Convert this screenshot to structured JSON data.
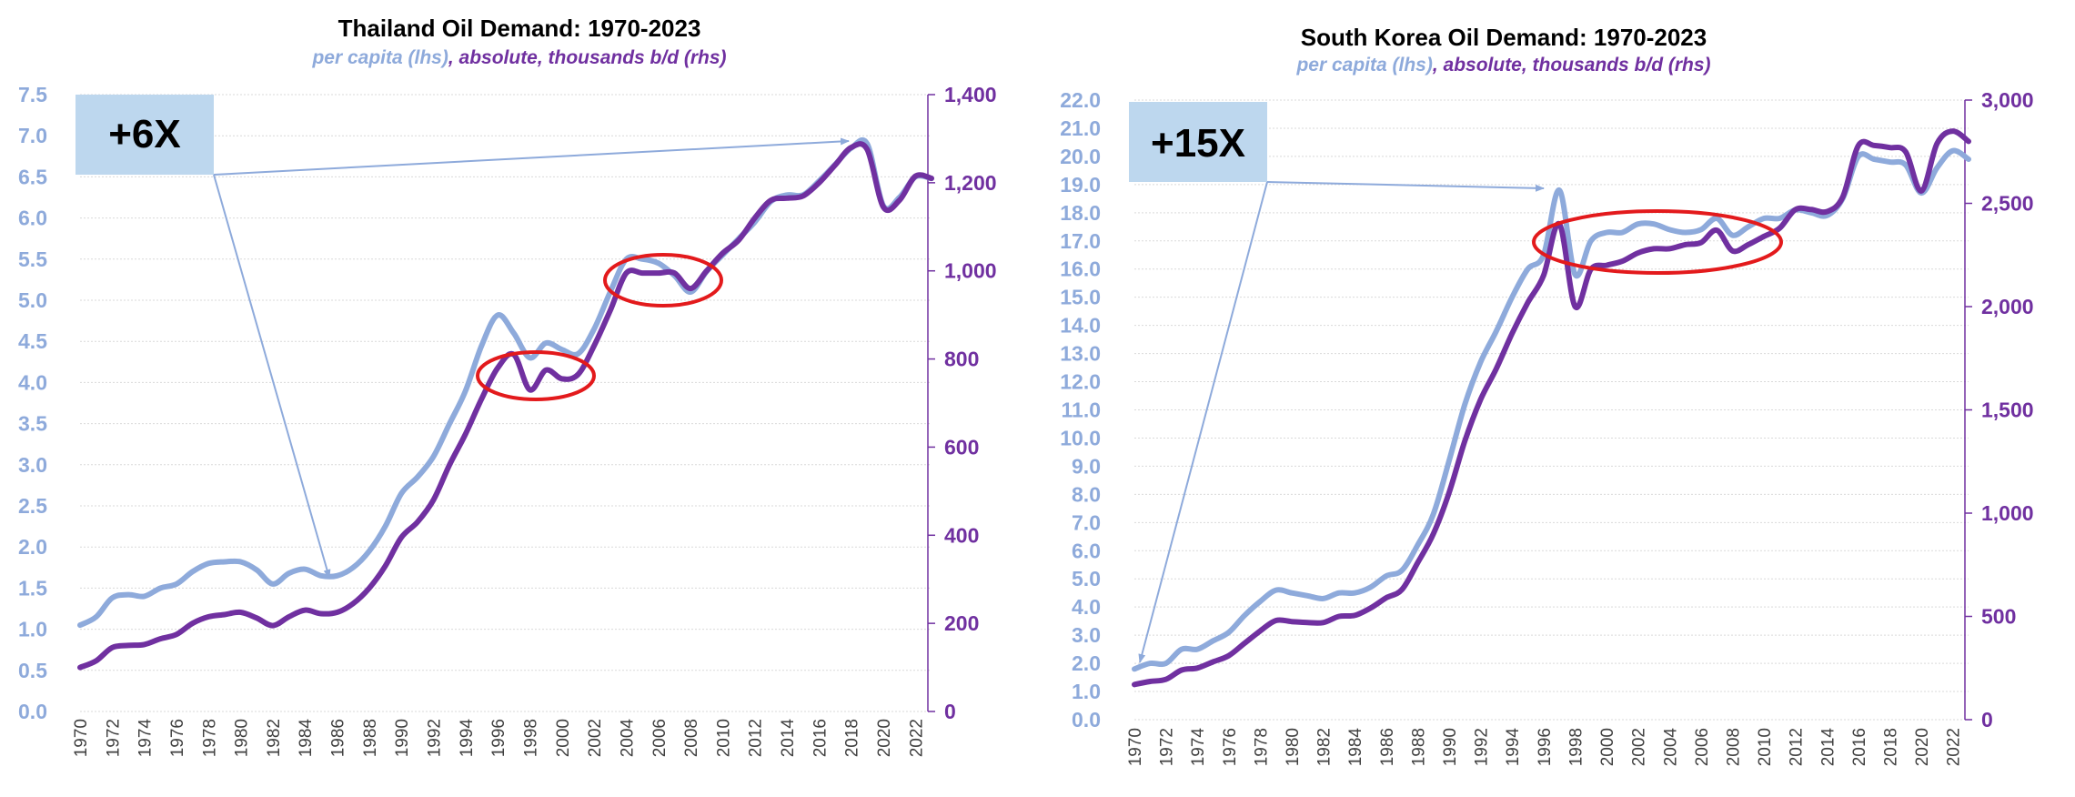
{
  "colors": {
    "per_capita": "#8eaadb",
    "absolute": "#7030a0",
    "left_axis_text": "#8eaadb",
    "right_axis_text": "#7030a0",
    "badge_fill": "#bdd7ee",
    "circle": "#e31a1c",
    "arrow": "#8eaadb"
  },
  "chart_data": [
    {
      "type": "line",
      "title": "Thailand Oil Demand: 1970-2023",
      "subtitle_part1": "per capita (lhs)",
      "subtitle_sep": ", ",
      "subtitle_part2": "absolute, thousands b/d (rhs)",
      "badge": "+6X",
      "xlim": [
        1970,
        2023
      ],
      "ylim_left": [
        0,
        7.5
      ],
      "ylim_right": [
        0,
        1400
      ],
      "left_ticks": [
        "0.0",
        "0.5",
        "1.0",
        "1.5",
        "2.0",
        "2.5",
        "3.0",
        "3.5",
        "4.0",
        "4.5",
        "5.0",
        "5.5",
        "6.0",
        "6.5",
        "7.0",
        "7.5"
      ],
      "right_ticks": [
        "0",
        "200",
        "400",
        "600",
        "800",
        "1,000",
        "1,200",
        "1,400"
      ],
      "x_ticks": [
        "1970",
        "1972",
        "1974",
        "1976",
        "1978",
        "1980",
        "1982",
        "1984",
        "1986",
        "1988",
        "1990",
        "1992",
        "1994",
        "1996",
        "1998",
        "2000",
        "2002",
        "2004",
        "2006",
        "2008",
        "2010",
        "2012",
        "2014",
        "2016",
        "2018",
        "2020",
        "2022"
      ],
      "x": [
        1970,
        1971,
        1972,
        1973,
        1974,
        1975,
        1976,
        1977,
        1978,
        1979,
        1980,
        1981,
        1982,
        1983,
        1984,
        1985,
        1986,
        1987,
        1988,
        1989,
        1990,
        1991,
        1992,
        1993,
        1994,
        1995,
        1996,
        1997,
        1998,
        1999,
        2000,
        2001,
        2002,
        2003,
        2004,
        2005,
        2006,
        2007,
        2008,
        2009,
        2010,
        2011,
        2012,
        2013,
        2014,
        2015,
        2016,
        2017,
        2018,
        2019,
        2020,
        2021,
        2022,
        2023
      ],
      "series": [
        {
          "name": "per capita (lhs)",
          "axis": "left",
          "values": [
            1.05,
            1.15,
            1.38,
            1.42,
            1.4,
            1.5,
            1.55,
            1.7,
            1.8,
            1.82,
            1.82,
            1.72,
            1.55,
            1.68,
            1.73,
            1.65,
            1.65,
            1.75,
            1.95,
            2.25,
            2.65,
            2.85,
            3.1,
            3.5,
            3.9,
            4.45,
            4.82,
            4.6,
            4.3,
            4.48,
            4.4,
            4.35,
            4.65,
            5.1,
            5.5,
            5.5,
            5.45,
            5.3,
            5.1,
            5.35,
            5.55,
            5.75,
            5.95,
            6.2,
            6.28,
            6.28,
            6.45,
            6.65,
            6.85,
            6.9,
            6.15,
            6.25,
            6.5,
            6.48
          ]
        },
        {
          "name": "absolute, thousands b/d (rhs)",
          "axis": "right",
          "values": [
            100,
            115,
            145,
            150,
            152,
            165,
            175,
            200,
            215,
            220,
            225,
            212,
            195,
            215,
            230,
            222,
            225,
            245,
            280,
            330,
            395,
            430,
            480,
            560,
            630,
            710,
            780,
            810,
            730,
            775,
            755,
            765,
            830,
            910,
            995,
            995,
            995,
            995,
            960,
            1000,
            1040,
            1070,
            1120,
            1160,
            1165,
            1170,
            1200,
            1240,
            1280,
            1275,
            1145,
            1160,
            1215,
            1210
          ]
        }
      ],
      "circles": [
        "1996-2001 dip",
        "2004-2009 dip"
      ]
    },
    {
      "type": "line",
      "title": "South Korea Oil Demand: 1970-2023",
      "subtitle_part1": "per capita (lhs)",
      "subtitle_sep": ", ",
      "subtitle_part2": "absolute, thousands b/d (rhs)",
      "badge": "+15X",
      "xlim": [
        1970,
        2023
      ],
      "ylim_left": [
        0,
        22
      ],
      "ylim_right": [
        0,
        3000
      ],
      "left_ticks": [
        "0.0",
        "1.0",
        "2.0",
        "3.0",
        "4.0",
        "5.0",
        "6.0",
        "7.0",
        "8.0",
        "9.0",
        "10.0",
        "11.0",
        "12.0",
        "13.0",
        "14.0",
        "15.0",
        "16.0",
        "17.0",
        "18.0",
        "19.0",
        "20.0",
        "21.0",
        "22.0"
      ],
      "right_ticks": [
        "0",
        "500",
        "1,000",
        "1,500",
        "2,000",
        "2,500",
        "3,000"
      ],
      "x_ticks": [
        "1970",
        "1972",
        "1974",
        "1976",
        "1978",
        "1980",
        "1982",
        "1984",
        "1986",
        "1988",
        "1990",
        "1992",
        "1994",
        "1996",
        "1998",
        "2000",
        "2002",
        "2004",
        "2006",
        "2008",
        "2010",
        "2012",
        "2014",
        "2016",
        "2018",
        "2020",
        "2022"
      ],
      "x": [
        1970,
        1971,
        1972,
        1973,
        1974,
        1975,
        1976,
        1977,
        1978,
        1979,
        1980,
        1981,
        1982,
        1983,
        1984,
        1985,
        1986,
        1987,
        1988,
        1989,
        1990,
        1991,
        1992,
        1993,
        1994,
        1995,
        1996,
        1997,
        1998,
        1999,
        2000,
        2001,
        2002,
        2003,
        2004,
        2005,
        2006,
        2007,
        2008,
        2009,
        2010,
        2011,
        2012,
        2013,
        2014,
        2015,
        2016,
        2017,
        2018,
        2019,
        2020,
        2021,
        2022,
        2023
      ],
      "series": [
        {
          "name": "per capita (lhs)",
          "axis": "left",
          "values": [
            1.8,
            2.0,
            2.0,
            2.5,
            2.5,
            2.8,
            3.1,
            3.7,
            4.2,
            4.6,
            4.5,
            4.4,
            4.3,
            4.5,
            4.5,
            4.7,
            5.1,
            5.3,
            6.2,
            7.3,
            9.2,
            11.2,
            12.7,
            13.8,
            15.0,
            16.0,
            16.5,
            18.8,
            15.8,
            17.0,
            17.3,
            17.3,
            17.6,
            17.6,
            17.4,
            17.3,
            17.4,
            17.8,
            17.2,
            17.5,
            17.8,
            17.8,
            18.1,
            18.0,
            17.9,
            18.5,
            20.0,
            19.9,
            19.8,
            19.7,
            18.7,
            19.6,
            20.2,
            19.9
          ]
        },
        {
          "name": "absolute, thousands b/d (rhs)",
          "axis": "right",
          "values": [
            170,
            185,
            195,
            240,
            250,
            280,
            310,
            370,
            430,
            480,
            475,
            470,
            470,
            500,
            505,
            540,
            590,
            630,
            760,
            900,
            1100,
            1350,
            1550,
            1700,
            1870,
            2020,
            2150,
            2400,
            2000,
            2180,
            2200,
            2220,
            2260,
            2280,
            2280,
            2300,
            2310,
            2370,
            2270,
            2300,
            2340,
            2380,
            2470,
            2470,
            2460,
            2530,
            2780,
            2780,
            2770,
            2750,
            2560,
            2790,
            2850,
            2800
          ]
        }
      ],
      "circles": [
        "1997-2010 plateau"
      ]
    }
  ]
}
